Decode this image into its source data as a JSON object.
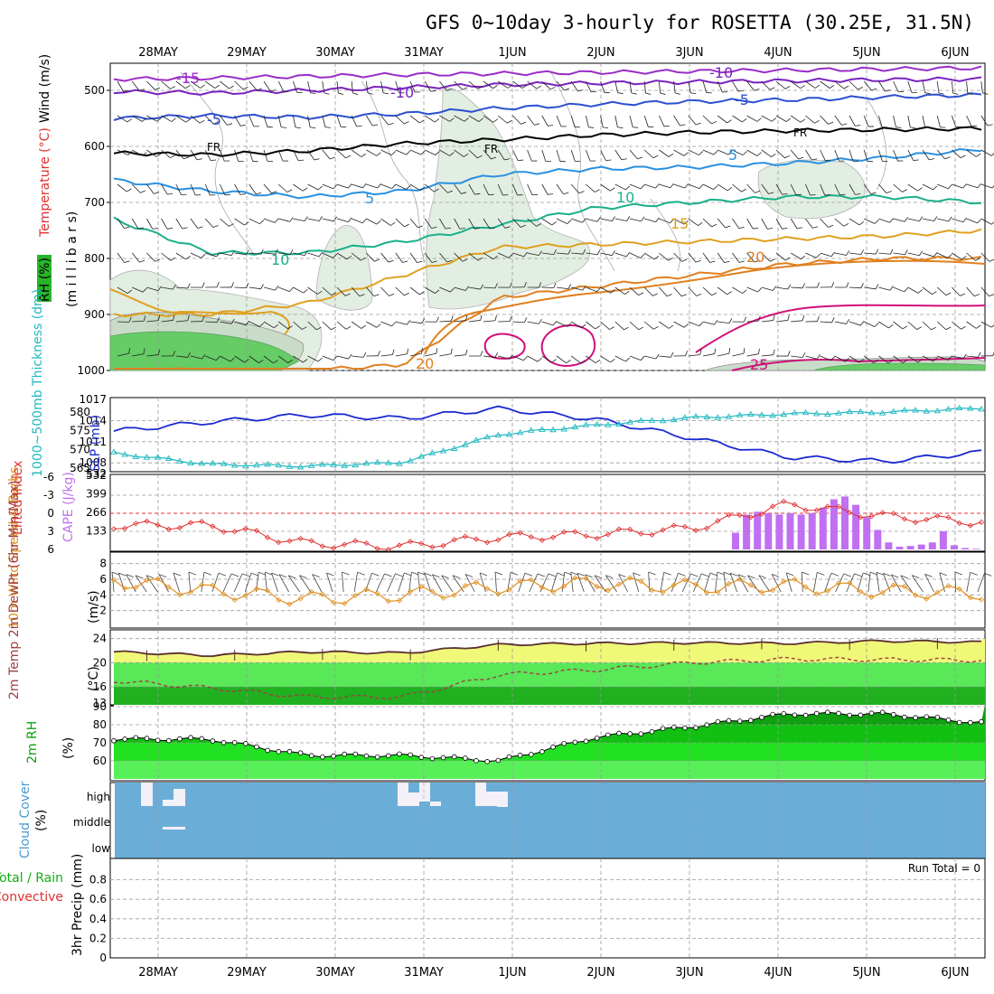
{
  "title": "GFS 0~10day 3-hourly for ROSETTA (30.25E, 31.5N)",
  "dates": [
    "28MAY",
    "29MAY",
    "30MAY",
    "31MAY",
    "1JUN",
    "2JUN",
    "3JUN",
    "4JUN",
    "5JUN",
    "6JUN"
  ],
  "colors": {
    "temp_neg15": "#9a2cc8",
    "temp_neg10": "#7a22c0",
    "temp_neg5": "#2c50d0",
    "temp_fr": "#000000",
    "temp_5": "#2a90e0",
    "temp_10": "#19b08a",
    "temp_15": "#e0a020",
    "temp_20": "#e08020",
    "temp_25": "#d0107a",
    "slp": "#1a2ad0",
    "thickness": "#20b8c0",
    "lifted": "#e03030",
    "cape": "#c070f0",
    "wind10": "#e09020",
    "temp2m": "#5a3030",
    "dewpt2m": "#a04040",
    "cloud": "#6aaed8",
    "rh": "#10c010"
  },
  "panels": {
    "upper": {
      "label_rh": "RH (%)",
      "label_temp": "Temperature (°C)",
      "label_wind": "Wind (m/s)",
      "label_mb": "(m i l l i b a r s)",
      "y_ticks": [
        "500",
        "600",
        "700",
        "800",
        "900",
        "1000"
      ]
    },
    "slp": {
      "label_thick": "1000~500mb Thickness (dm)",
      "label_slp": "SLP (mb)",
      "y_ticks_left": [
        "580",
        "575",
        "570",
        "565"
      ],
      "y_ticks_right": [
        "1017",
        "1014",
        "1011",
        "1008"
      ]
    },
    "li": {
      "label_li": "Lifted Index",
      "label_cape": "CAPE (J/kg)",
      "y_ticks_left": [
        "-6",
        "-3",
        "0",
        "3",
        "6"
      ],
      "y_ticks_right": [
        "532",
        "399",
        "266",
        "133"
      ]
    },
    "wind": {
      "label": "10m Wind Speed & Barbs",
      "label_unit": "(m/s)",
      "y_ticks": [
        "8",
        "6",
        "4",
        "2"
      ]
    },
    "temp": {
      "label": "2m Temp 2m DewPt (6hr Min/Max)",
      "label_unit": "(°C)",
      "y_ticks": [
        "24",
        "20",
        "16",
        "13"
      ]
    },
    "rh": {
      "label": "2m RH",
      "label_unit": "(%)",
      "y_ticks": [
        "90",
        "80",
        "70",
        "60"
      ]
    },
    "cloud": {
      "label": "Cloud Cover",
      "label_unit": "(%)",
      "levels": [
        "high",
        "middle",
        "low"
      ]
    },
    "precip": {
      "label": "3hr Precip (mm)",
      "label_total": "Total / Rain",
      "label_conv": "Convective",
      "run_total": "Run Total = 0",
      "y_ticks": [
        "0.8",
        "0.6",
        "0.4",
        "0.2",
        "0"
      ]
    }
  },
  "chart_data": [
    {
      "type": "line",
      "name": "upper-air temperature contours",
      "x": [
        "28MAY",
        "29MAY",
        "30MAY",
        "31MAY",
        "1JUN",
        "2JUN",
        "3JUN",
        "4JUN",
        "5JUN",
        "6JUN"
      ],
      "ylabel": "millibars",
      "ylim": [
        1000,
        450
      ],
      "contour_labels": [
        "-15",
        "-10",
        "-5",
        "FR",
        "5",
        "10",
        "15",
        "20",
        "25"
      ],
      "series": [
        {
          "name": "-15",
          "values": [
            480,
            478,
            475,
            472,
            470,
            468,
            466,
            464,
            462,
            460
          ]
        },
        {
          "name": "-10",
          "values": [
            502,
            505,
            500,
            495,
            490,
            487,
            485,
            483,
            481,
            480
          ]
        },
        {
          "name": "-5",
          "values": [
            550,
            545,
            548,
            542,
            532,
            525,
            520,
            517,
            512,
            508
          ]
        },
        {
          "name": "FR",
          "values": [
            612,
            615,
            608,
            595,
            588,
            580,
            575,
            572,
            570,
            568
          ]
        },
        {
          "name": "5",
          "values": [
            660,
            680,
            690,
            680,
            650,
            640,
            637,
            630,
            620,
            605
          ]
        },
        {
          "name": "10",
          "values": [
            730,
            790,
            790,
            770,
            740,
            710,
            700,
            690,
            690,
            700
          ]
        },
        {
          "name": "15",
          "values": [
            900,
            900,
            880,
            830,
            780,
            775,
            770,
            765,
            760,
            750
          ]
        },
        {
          "name": "20",
          "values": [
            1000,
            1000,
            1000,
            990,
            870,
            850,
            830,
            810,
            800,
            800
          ]
        }
      ],
      "rh_shading": [
        30,
        50,
        70,
        90
      ]
    },
    {
      "type": "line",
      "name": "SLP and thickness",
      "x": [
        "28MAY",
        "29MAY",
        "30MAY",
        "31MAY",
        "1JUN",
        "2JUN",
        "3JUN",
        "4JUN",
        "5JUN",
        "6JUN"
      ],
      "series": [
        {
          "name": "SLP (mb)",
          "values": [
            1012.5,
            1013.8,
            1014.8,
            1014.3,
            1015.7,
            1014.2,
            1011.5,
            1008.8,
            1008.2,
            1009.5
          ]
        },
        {
          "name": "Thickness (dm)",
          "values": [
            569.0,
            566.0,
            565.5,
            566.5,
            574.0,
            576.5,
            578.5,
            579.5,
            580.0,
            581.0
          ]
        }
      ],
      "ylim_left": [
        565,
        583
      ],
      "ylim_right": [
        1007,
        1017
      ]
    },
    {
      "type": "bar",
      "name": "CAPE and lifted index",
      "x": [
        "28MAY",
        "29MAY",
        "30MAY",
        "31MAY",
        "1JUN",
        "2JUN",
        "3JUN",
        "4JUN",
        "5JUN",
        "6JUN"
      ],
      "series": [
        {
          "name": "Lifted Index",
          "values": [
            2.0,
            2.0,
            5.0,
            5.5,
            4.0,
            3.5,
            2.5,
            -1.5,
            0.5,
            1.5
          ]
        },
        {
          "name": "CAPE (J/kg)",
          "values": [
            0,
            0,
            0,
            0,
            0,
            0,
            0,
            260,
            250,
            30
          ]
        }
      ],
      "ylim_left": [
        6,
        -6
      ],
      "ylim_right": [
        0,
        532
      ]
    },
    {
      "type": "line",
      "name": "10m wind speed",
      "x": [
        "28MAY",
        "29MAY",
        "30MAY",
        "31MAY",
        "1JUN",
        "2JUN",
        "3JUN",
        "4JUN",
        "5JUN",
        "6JUN"
      ],
      "series": [
        {
          "name": "Speed",
          "values": [
            5.8,
            4.5,
            3.5,
            4.0,
            5.0,
            5.5,
            5.0,
            5.2,
            4.5,
            4.2
          ]
        }
      ],
      "ylim": [
        0,
        9
      ]
    },
    {
      "type": "area",
      "name": "2m temperature and dew point",
      "x": [
        "28MAY",
        "29MAY",
        "30MAY",
        "31MAY",
        "1JUN",
        "2JUN",
        "3JUN",
        "4JUN",
        "5JUN",
        "6JUN"
      ],
      "series": [
        {
          "name": "2m Temp",
          "values": [
            21.8,
            21.2,
            21.8,
            21.6,
            23.0,
            23.2,
            23.3,
            23.2,
            23.6,
            23.4
          ]
        },
        {
          "name": "2m DewPt",
          "values": [
            17.0,
            15.8,
            14.3,
            14.3,
            18.0,
            18.8,
            20.0,
            20.6,
            20.5,
            20.4
          ]
        }
      ],
      "ylim": [
        13,
        25
      ]
    },
    {
      "type": "area",
      "name": "2m RH",
      "x": [
        "28MAY",
        "29MAY",
        "30MAY",
        "31MAY",
        "1JUN",
        "2JUN",
        "3JUN",
        "4JUN",
        "5JUN",
        "6JUN"
      ],
      "series": [
        {
          "name": "2m RH",
          "values": [
            72,
            72,
            63,
            63,
            60,
            73,
            79,
            86,
            86,
            81
          ]
        }
      ],
      "ylim": [
        50,
        90
      ]
    },
    {
      "type": "bar",
      "name": "Cloud cover",
      "x": [
        "28MAY",
        "29MAY",
        "30MAY",
        "31MAY",
        "1JUN",
        "2JUN",
        "3JUN",
        "4JUN",
        "5JUN",
        "6JUN"
      ],
      "series": [
        {
          "name": "Cloud Cover",
          "values": [
            100,
            100,
            100,
            100,
            100,
            100,
            100,
            100,
            100,
            100
          ]
        }
      ]
    },
    {
      "type": "bar",
      "name": "3hr precipitation",
      "x": [
        "28MAY",
        "29MAY",
        "30MAY",
        "31MAY",
        "1JUN",
        "2JUN",
        "3JUN",
        "4JUN",
        "5JUN",
        "6JUN"
      ],
      "series": [
        {
          "name": "3hr Precip (mm)",
          "values": [
            0,
            0,
            0,
            0,
            0,
            0,
            0,
            0,
            0,
            0
          ]
        }
      ],
      "ylim": [
        0,
        1
      ]
    }
  ]
}
